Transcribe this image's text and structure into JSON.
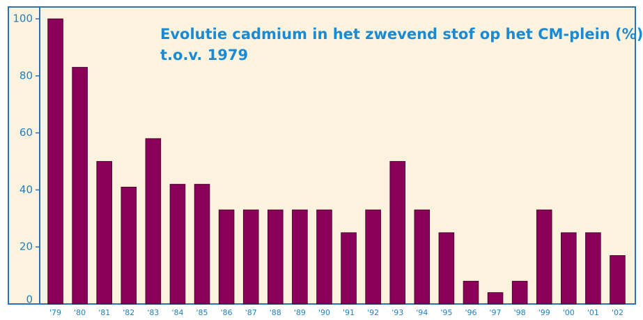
{
  "chart_data": {
    "type": "bar",
    "title": "Evolutie cadmium in het zwevend stof op het CM-plein (%)",
    "subtitle": "t.o.v. 1979",
    "categories": [
      "'79",
      "'80",
      "'81",
      "'82",
      "'83",
      "'84",
      "'85",
      "'86",
      "'87",
      "'88",
      "'89",
      "'90",
      "'91",
      "'92",
      "'93",
      "'94",
      "'95",
      "'96",
      "'97",
      "'98",
      "'99",
      "'00",
      "'01",
      "'02"
    ],
    "values": [
      100,
      83,
      50,
      41,
      58,
      42,
      42,
      33,
      33,
      33,
      33,
      33,
      25,
      33,
      50,
      33,
      25,
      8,
      4,
      8,
      33,
      25,
      25,
      17
    ],
    "color": "#8a0058",
    "ylim": [
      0,
      100
    ],
    "yticks": [
      0,
      20,
      40,
      60,
      80,
      100
    ],
    "grid": false
  }
}
